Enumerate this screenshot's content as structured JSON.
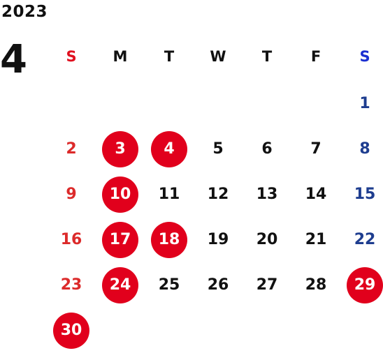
{
  "calendar": {
    "year": "2023",
    "month": "4",
    "weekdays": [
      "S",
      "M",
      "T",
      "W",
      "T",
      "F",
      "S"
    ],
    "weeks": [
      [
        {
          "day": "",
          "holiday": false
        },
        {
          "day": "",
          "holiday": false
        },
        {
          "day": "",
          "holiday": false
        },
        {
          "day": "",
          "holiday": false
        },
        {
          "day": "",
          "holiday": false
        },
        {
          "day": "",
          "holiday": false
        },
        {
          "day": "1",
          "holiday": false
        }
      ],
      [
        {
          "day": "2",
          "holiday": false
        },
        {
          "day": "3",
          "holiday": true
        },
        {
          "day": "4",
          "holiday": true
        },
        {
          "day": "5",
          "holiday": false
        },
        {
          "day": "6",
          "holiday": false
        },
        {
          "day": "7",
          "holiday": false
        },
        {
          "day": "8",
          "holiday": false
        }
      ],
      [
        {
          "day": "9",
          "holiday": false
        },
        {
          "day": "10",
          "holiday": true
        },
        {
          "day": "11",
          "holiday": false
        },
        {
          "day": "12",
          "holiday": false
        },
        {
          "day": "13",
          "holiday": false
        },
        {
          "day": "14",
          "holiday": false
        },
        {
          "day": "15",
          "holiday": false
        }
      ],
      [
        {
          "day": "16",
          "holiday": false
        },
        {
          "day": "17",
          "holiday": true
        },
        {
          "day": "18",
          "holiday": true
        },
        {
          "day": "19",
          "holiday": false
        },
        {
          "day": "20",
          "holiday": false
        },
        {
          "day": "21",
          "holiday": false
        },
        {
          "day": "22",
          "holiday": false
        }
      ],
      [
        {
          "day": "23",
          "holiday": false
        },
        {
          "day": "24",
          "holiday": true
        },
        {
          "day": "25",
          "holiday": false
        },
        {
          "day": "26",
          "holiday": false
        },
        {
          "day": "27",
          "holiday": false
        },
        {
          "day": "28",
          "holiday": false
        },
        {
          "day": "29",
          "holiday": true
        }
      ],
      [
        {
          "day": "30",
          "holiday": true
        },
        {
          "day": "",
          "holiday": false
        },
        {
          "day": "",
          "holiday": false
        },
        {
          "day": "",
          "holiday": false
        },
        {
          "day": "",
          "holiday": false
        },
        {
          "day": "",
          "holiday": false
        },
        {
          "day": "",
          "holiday": false
        }
      ]
    ]
  },
  "colors": {
    "holiday_circle": "#e1001c",
    "sunday": "#dc2a2a",
    "saturday": "#1e3d8f",
    "weekday_label_sunday": "#e0101f",
    "weekday_label_saturday": "#1b2fd1",
    "default_text": "#111111"
  }
}
